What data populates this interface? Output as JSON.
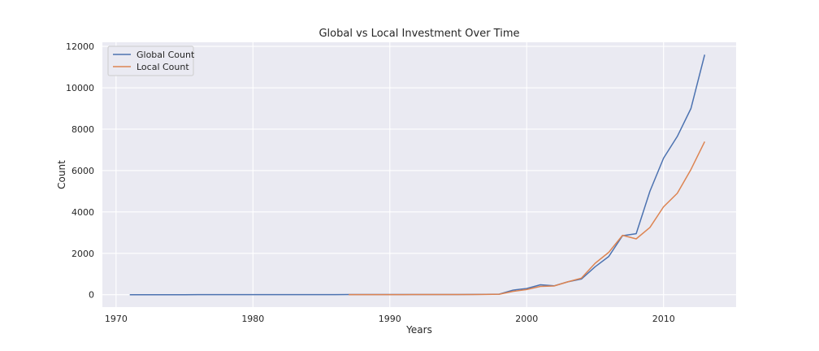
{
  "chart_data": {
    "type": "line",
    "title": "Global vs Local Investment Over Time",
    "xlabel": "Years",
    "ylabel": "Count",
    "xlim": [
      1969,
      2015.3
    ],
    "ylim": [
      -600,
      12200
    ],
    "xticks": [
      1970,
      1980,
      1990,
      2000,
      2010
    ],
    "yticks": [
      0,
      2000,
      4000,
      6000,
      8000,
      10000,
      12000
    ],
    "grid": true,
    "legend": "top-left",
    "series": [
      {
        "name": "Global Count",
        "color": "#4c72b0",
        "x": [
          1971,
          1972,
          1973,
          1974,
          1975,
          1976,
          1977,
          1978,
          1979,
          1980,
          1981,
          1982,
          1983,
          1984,
          1985,
          1986,
          1987,
          1988,
          1989,
          1990,
          1991,
          1992,
          1993,
          1994,
          1995,
          1996,
          1997,
          1998,
          1999,
          2000,
          2001,
          2002,
          2003,
          2004,
          2005,
          2006,
          2007,
          2008,
          2009,
          2010,
          2011,
          2012,
          2013
        ],
        "y": [
          2,
          2,
          2,
          2,
          2,
          3,
          3,
          3,
          3,
          4,
          4,
          5,
          5,
          5,
          6,
          6,
          7,
          8,
          9,
          10,
          10,
          10,
          10,
          10,
          10,
          12,
          15,
          30,
          220,
          300,
          480,
          430,
          620,
          760,
          1350,
          1850,
          2850,
          2950,
          5000,
          6600,
          7650,
          9000,
          11600
        ]
      },
      {
        "name": "Local Count",
        "color": "#dd8452",
        "x": [
          1987,
          1988,
          1989,
          1990,
          1991,
          1992,
          1993,
          1994,
          1995,
          1996,
          1997,
          1998,
          1999,
          2000,
          2001,
          2002,
          2003,
          2004,
          2005,
          2006,
          2007,
          2008,
          2009,
          2010,
          2011,
          2012,
          2013
        ],
        "y": [
          3,
          4,
          5,
          5,
          6,
          7,
          7,
          8,
          8,
          10,
          12,
          25,
          160,
          250,
          400,
          420,
          620,
          800,
          1520,
          2050,
          2870,
          2700,
          3250,
          4250,
          4900,
          6050,
          7400
        ]
      }
    ]
  }
}
